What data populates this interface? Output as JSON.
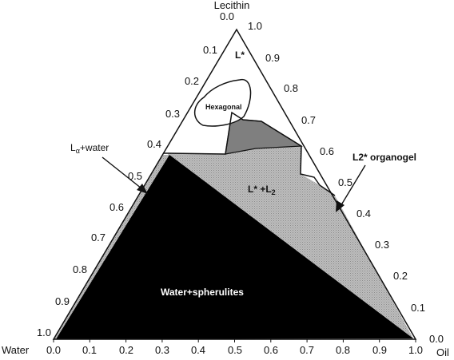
{
  "corners": {
    "top": "Lecithin",
    "left": "Water",
    "right": "Oil"
  },
  "ticks": {
    "bottom": [
      "0.0",
      "0.1",
      "0.2",
      "0.3",
      "0.4",
      "0.5",
      "0.6",
      "0.7",
      "0.8",
      "0.9",
      "1.0"
    ],
    "left": [
      "0.0",
      "0.1",
      "0.2",
      "0.3",
      "0.4",
      "0.5",
      "0.6",
      "0.7",
      "0.8",
      "0.9",
      "1.0"
    ],
    "right": [
      "1.0",
      "0.9",
      "0.8",
      "0.7",
      "0.6",
      "0.5",
      "0.4",
      "0.3",
      "0.2",
      "0.1",
      "0.0"
    ]
  },
  "regions": {
    "l_star": "L*",
    "hexagonal": "Hexagonal",
    "l_star_l2": "L* +L",
    "l_star_l2_sub": "2",
    "water_spherulites": "Water+spherulites"
  },
  "callouts": {
    "lalpha_water_prefix": "L",
    "lalpha_water_sub": "α",
    "lalpha_water_suffix": "+water",
    "l2_organogel": "L2* organogel"
  },
  "colors": {
    "outline": "#111111",
    "water_spherulites": "#000000",
    "l_star_l2": "#b4b4b4",
    "gray_wedge": "#808080",
    "background": "#ffffff"
  }
}
